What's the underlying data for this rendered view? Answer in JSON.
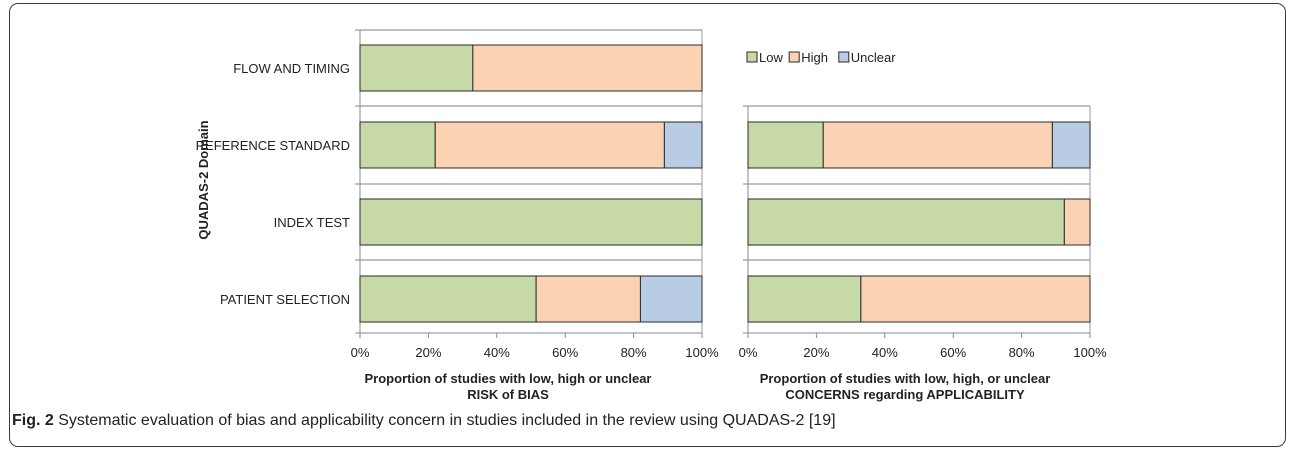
{
  "caption": {
    "label": "Fig. 2",
    "text": "Systematic evaluation of bias and applicability concern in studies included in the review using QUADAS-2 [19]"
  },
  "colors": {
    "Low": "#c6d9a7",
    "High": "#fcd2b4",
    "Unclear": "#b8cce4"
  },
  "chart_data": [
    {
      "type": "bar",
      "orientation": "horizontal",
      "stacked": true,
      "categories": [
        "FLOW AND TIMING",
        "REFERENCE STANDARD",
        "INDEX TEST",
        "PATIENT SELECTION"
      ],
      "series": [
        {
          "name": "Low",
          "values": [
            33,
            22,
            100,
            51.5
          ]
        },
        {
          "name": "High",
          "values": [
            67,
            67,
            0,
            30.5
          ]
        },
        {
          "name": "Unclear",
          "values": [
            0,
            11,
            0,
            18
          ]
        }
      ],
      "xlim": [
        0,
        100
      ],
      "xticks": [
        "0%",
        "20%",
        "40%",
        "60%",
        "80%",
        "100%"
      ],
      "ylabel": "QUADAS-2 Domain",
      "xlabel_line1": "Proportion of studies with low, high or unclear",
      "xlabel_line2": "RISK of BIAS"
    },
    {
      "type": "bar",
      "orientation": "horizontal",
      "stacked": true,
      "categories": [
        "REFERENCE STANDARD",
        "INDEX TEST",
        "PATIENT SELECTION"
      ],
      "series": [
        {
          "name": "Low",
          "values": [
            22,
            92.5,
            33
          ]
        },
        {
          "name": "High",
          "values": [
            67,
            7.5,
            67
          ]
        },
        {
          "name": "Unclear",
          "values": [
            11,
            0,
            0
          ]
        }
      ],
      "xlim": [
        0,
        100
      ],
      "xticks": [
        "0%",
        "20%",
        "40%",
        "60%",
        "80%",
        "100%"
      ],
      "xlabel_line1": "Proportion of studies with low, high, or unclear",
      "xlabel_line2": "CONCERNS regarding APPLICABILITY",
      "legend": [
        "Low",
        "High",
        "Unclear"
      ],
      "legend_position": "top"
    }
  ]
}
